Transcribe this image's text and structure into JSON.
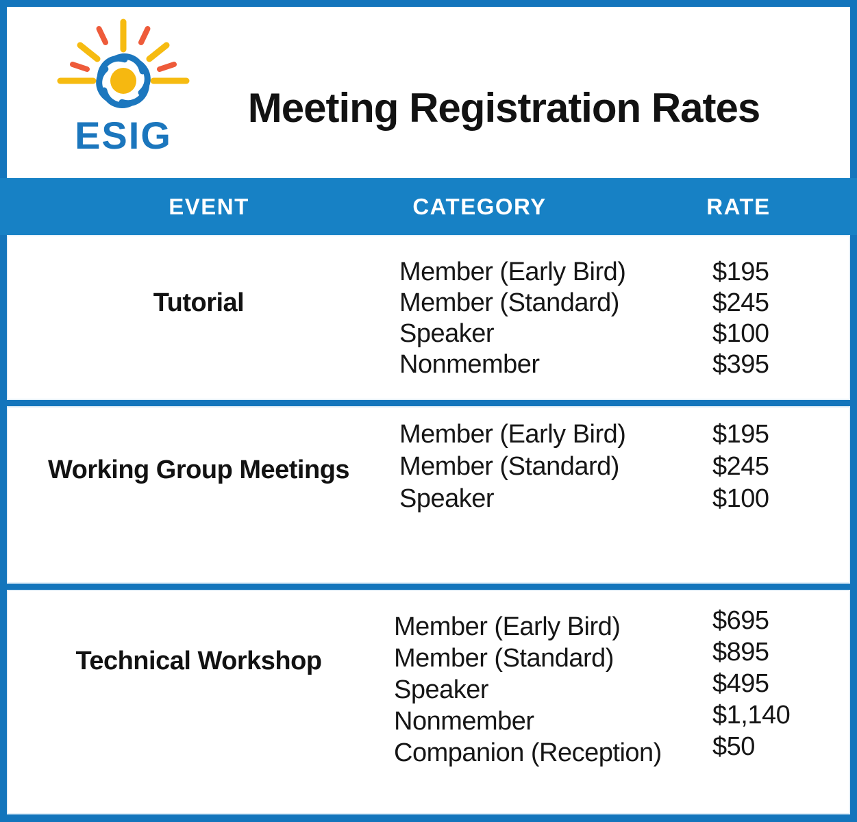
{
  "logo": {
    "text": "ESIG"
  },
  "header": {
    "title": "Meeting Registration Rates"
  },
  "table": {
    "columns": [
      "EVENT",
      "CATEGORY",
      "RATE"
    ],
    "sections": [
      {
        "event": "Tutorial",
        "rows": [
          {
            "category": "Member (Early Bird)",
            "rate": "$195"
          },
          {
            "category": "Member (Standard)",
            "rate": "$245"
          },
          {
            "category": "Speaker",
            "rate": "$100"
          },
          {
            "category": "Nonmember",
            "rate": "$395"
          }
        ]
      },
      {
        "event": "Working Group Meetings",
        "rows": [
          {
            "category": "Member (Early Bird)",
            "rate": "$195"
          },
          {
            "category": "Member (Standard)",
            "rate": "$245"
          },
          {
            "category": "Speaker",
            "rate": "$100"
          }
        ]
      },
      {
        "event": "Technical Workshop",
        "rows": [
          {
            "category": "Member (Early Bird)",
            "rate": "$695"
          },
          {
            "category": "Member (Standard)",
            "rate": "$895"
          },
          {
            "category": "Speaker",
            "rate": "$495"
          },
          {
            "category": "Nonmember",
            "rate": "$1,140"
          },
          {
            "category": "Companion (Reception)",
            "rate": "$50"
          }
        ]
      }
    ]
  },
  "colors": {
    "border_blue": "#1375BC",
    "band_blue": "#1781C5",
    "logo_blue": "#1C77BE",
    "logo_yellow": "#F6BB11",
    "logo_orange": "#EE5B3A",
    "text_dark": "#161616",
    "header_text_white": "#FFFFFF"
  }
}
